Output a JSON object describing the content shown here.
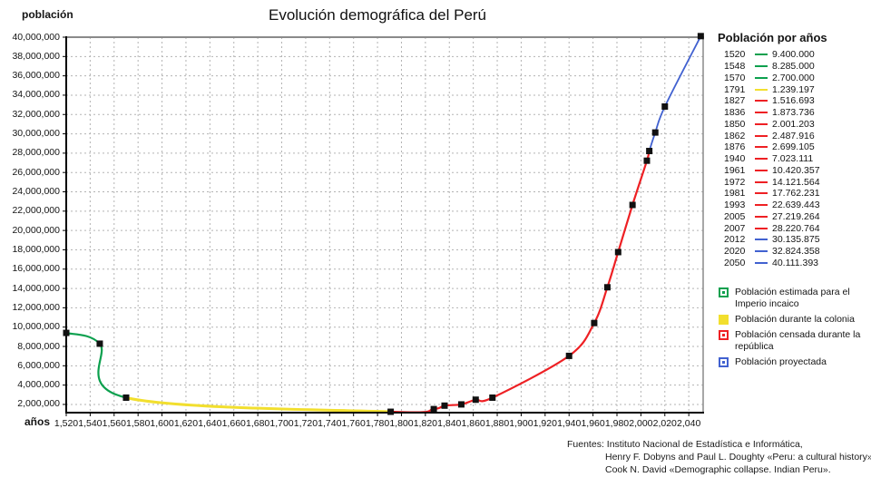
{
  "page": {
    "title": "Evolución demográfica del Perú"
  },
  "chart_data": {
    "type": "line",
    "title": "Evolución demográfica del Perú",
    "xlabel": "años",
    "ylabel": "población",
    "grid": true,
    "legend_position": "right",
    "xlim": [
      1520,
      2052
    ],
    "ylim": [
      1150000,
      40000000
    ],
    "x_ticks": [
      1520,
      1540,
      1560,
      1580,
      1600,
      1620,
      1640,
      1660,
      1680,
      1700,
      1720,
      1740,
      1760,
      1780,
      1800,
      1820,
      1840,
      1860,
      1880,
      1900,
      1920,
      1940,
      1960,
      1980,
      2000,
      2020,
      2040
    ],
    "y_ticks": [
      40000000,
      38000000,
      36000000,
      34000000,
      32000000,
      30000000,
      28000000,
      26000000,
      24000000,
      22000000,
      20000000,
      18000000,
      16000000,
      14000000,
      12000000,
      10000000,
      8000000,
      6000000,
      4000000,
      2000000
    ],
    "marker": "black-square",
    "series": [
      {
        "name": "Población estimada para el Imperio incaico",
        "color": "#0ca04e",
        "line_width": 2.2,
        "points": [
          [
            1520,
            9400000
          ],
          [
            1548,
            8285000
          ],
          [
            1570,
            2700000
          ]
        ]
      },
      {
        "name": "Población durante la colonia",
        "color": "#f2df2e",
        "line_width": 3,
        "points": [
          [
            1570,
            2700000
          ],
          [
            1791,
            1239197
          ]
        ]
      },
      {
        "name": "Población censada durante la república",
        "color": "#ee2024",
        "line_width": 2.2,
        "points": [
          [
            1791,
            1239197
          ],
          [
            1827,
            1516693
          ],
          [
            1836,
            1873736
          ],
          [
            1850,
            2001203
          ],
          [
            1862,
            2487916
          ],
          [
            1876,
            2699105
          ],
          [
            1940,
            7023111
          ],
          [
            1961,
            10420357
          ],
          [
            1972,
            14121564
          ],
          [
            1981,
            17762231
          ],
          [
            1993,
            22639443
          ],
          [
            2005,
            27219264
          ],
          [
            2007,
            28220764
          ]
        ]
      },
      {
        "name": "Población proyectada",
        "color": "#4161d0",
        "line_width": 1.8,
        "points": [
          [
            2007,
            28220764
          ],
          [
            2012,
            30135875
          ],
          [
            2020,
            32824358
          ],
          [
            2050,
            40111393
          ]
        ]
      }
    ]
  },
  "legend": {
    "title": "Población por años",
    "rows": [
      {
        "year": "1520",
        "value": "9.400.000",
        "color": "#0ca04e"
      },
      {
        "year": "1548",
        "value": "8.285.000",
        "color": "#0ca04e"
      },
      {
        "year": "1570",
        "value": "2.700.000",
        "color": "#0ca04e"
      },
      {
        "year": "1791",
        "value": "1.239.197",
        "color": "#f2df2e"
      },
      {
        "year": "1827",
        "value": "1.516.693",
        "color": "#ee2024"
      },
      {
        "year": "1836",
        "value": "1.873.736",
        "color": "#ee2024"
      },
      {
        "year": "1850",
        "value": "2.001.203",
        "color": "#ee2024"
      },
      {
        "year": "1862",
        "value": "2.487.916",
        "color": "#ee2024"
      },
      {
        "year": "1876",
        "value": "2.699.105",
        "color": "#ee2024"
      },
      {
        "year": "1940",
        "value": "7.023.111",
        "color": "#ee2024"
      },
      {
        "year": "1961",
        "value": "10.420.357",
        "color": "#ee2024"
      },
      {
        "year": "1972",
        "value": "14.121.564",
        "color": "#ee2024"
      },
      {
        "year": "1981",
        "value": "17.762.231",
        "color": "#ee2024"
      },
      {
        "year": "1993",
        "value": "22.639.443",
        "color": "#ee2024"
      },
      {
        "year": "2005",
        "value": "27.219.264",
        "color": "#ee2024"
      },
      {
        "year": "2007",
        "value": "28.220.764",
        "color": "#ee2024"
      },
      {
        "year": "2012",
        "value": "30.135.875",
        "color": "#4161d0"
      },
      {
        "year": "2020",
        "value": "32.824.358",
        "color": "#4161d0"
      },
      {
        "year": "2050",
        "value": "40.111.393",
        "color": "#4161d0"
      }
    ]
  },
  "category_legend": [
    {
      "label": "Población estimada para el Imperio incaico",
      "color": "#0ca04e",
      "style": "dot"
    },
    {
      "label": "Población durante la colonia",
      "color": "#f2df2e",
      "style": "solid"
    },
    {
      "label": "Población censada durante la república",
      "color": "#ee2024",
      "style": "dot"
    },
    {
      "label": "Población proyectada",
      "color": "#4161d0",
      "style": "dot"
    }
  ],
  "sources": {
    "lines": [
      "Fuentes: Instituto Nacional de Estadística e Informática,",
      "Henry F. Dobyns and Paul L. Doughty «Peru: a cultural history»,",
      "Cook N. David «Demographic collapse. Indian Peru»."
    ]
  },
  "colors": {
    "incaico": "#0ca04e",
    "colonia": "#f2df2e",
    "republica": "#ee2024",
    "proyectada": "#4161d0",
    "gridline": "#b3b3b3",
    "plot_border": "#8a8a8a",
    "axis": "#000000",
    "marker": "#111111"
  }
}
